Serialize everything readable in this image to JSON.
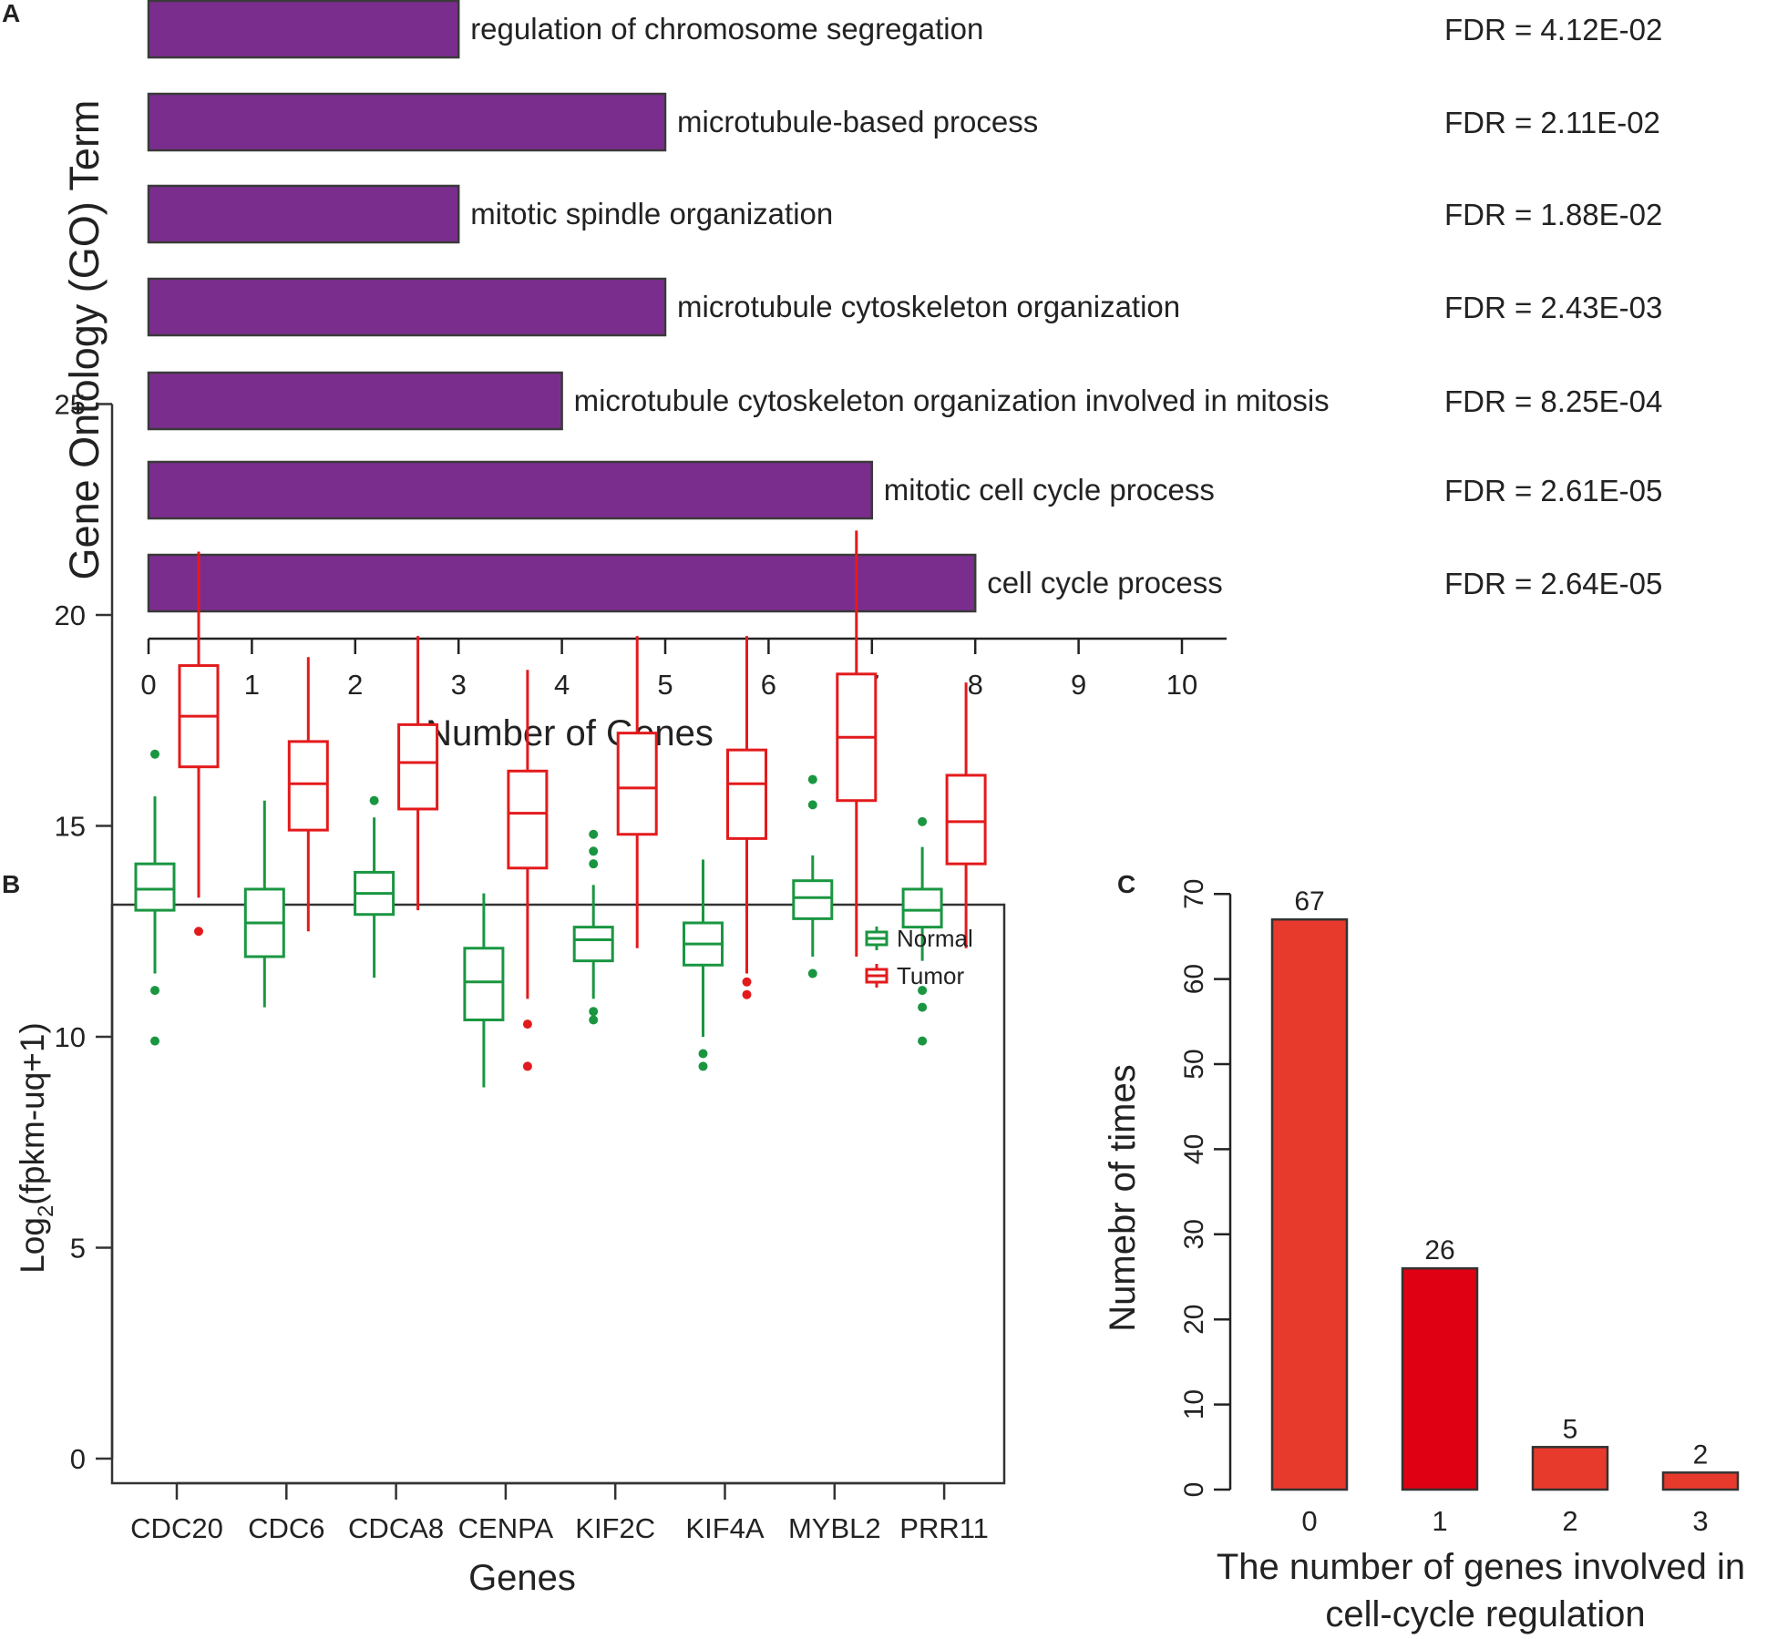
{
  "panels": {
    "a_letter": "A",
    "b_letter": "B",
    "c_letter": "C"
  },
  "chart_data": [
    {
      "panel": "A",
      "type": "bar",
      "orientation": "horizontal",
      "categories": [
        "regulation of chromosome segregation",
        "microtubule-based process",
        "mitotic spindle organization",
        "microtubule cytoskeleton organization",
        "microtubule cytoskeleton organization involved in mitosis",
        "mitotic cell cycle process",
        "cell cycle process"
      ],
      "values": [
        3,
        5,
        3,
        5,
        4,
        7,
        8
      ],
      "annotations": [
        "FDR = 4.12E-02",
        "FDR = 2.11E-02",
        "FDR = 1.88E-02",
        "FDR = 2.43E-03",
        "FDR = 8.25E-04",
        "FDR = 2.61E-05",
        "FDR = 2.64E-05"
      ],
      "xlabel": "Number of Genes",
      "ylabel": "Gene Ontology (GO) Term",
      "xlim": [
        0,
        10
      ],
      "xticks": [
        "0",
        "1",
        "2",
        "3",
        "4",
        "5",
        "6",
        "7",
        "8",
        "9",
        "10"
      ],
      "bar_color": "#7b2d8e",
      "grid": false
    },
    {
      "panel": "B",
      "type": "boxplot",
      "categories": [
        "CDC20",
        "CDC6",
        "CDCA8",
        "CENPA",
        "KIF2C",
        "KIF4A",
        "MYBL2",
        "PRR11"
      ],
      "ylabel_main": "Log",
      "ylabel_sub": "2",
      "ylabel_rest": "(fpkm-uq+1)",
      "xlabel": "Genes",
      "ylim": [
        -1.2,
        26
      ],
      "yticks": [
        "0",
        "5",
        "10",
        "15",
        "20",
        "25"
      ],
      "legend": {
        "position": "top-right",
        "entries": [
          "Normal",
          "Tumor"
        ]
      },
      "colors": {
        "Normal": "#1a9641",
        "Tumor": "#e31a1c"
      },
      "series": [
        {
          "name": "Normal",
          "boxes": [
            {
              "whisker_low": 11.5,
              "q1": 13.0,
              "median": 13.5,
              "q3": 14.1,
              "whisker_high": 15.7,
              "outliers": [
                16.7,
                11.1,
                9.9
              ]
            },
            {
              "whisker_low": 10.7,
              "q1": 11.9,
              "median": 12.7,
              "q3": 13.5,
              "whisker_high": 15.6,
              "outliers": []
            },
            {
              "whisker_low": 11.4,
              "q1": 12.9,
              "median": 13.4,
              "q3": 13.9,
              "whisker_high": 15.2,
              "outliers": [
                15.6
              ]
            },
            {
              "whisker_low": 8.8,
              "q1": 10.4,
              "median": 11.3,
              "q3": 12.1,
              "whisker_high": 13.4,
              "outliers": []
            },
            {
              "whisker_low": 10.9,
              "q1": 11.8,
              "median": 12.3,
              "q3": 12.6,
              "whisker_high": 13.6,
              "outliers": [
                14.1,
                14.4,
                14.8,
                10.6,
                10.4
              ]
            },
            {
              "whisker_low": 10.0,
              "q1": 11.7,
              "median": 12.2,
              "q3": 12.7,
              "whisker_high": 14.2,
              "outliers": [
                9.6,
                9.3
              ]
            },
            {
              "whisker_low": 11.9,
              "q1": 12.8,
              "median": 13.3,
              "q3": 13.7,
              "whisker_high": 14.3,
              "outliers": [
                15.5,
                16.1,
                11.5
              ]
            },
            {
              "whisker_low": 11.8,
              "q1": 12.6,
              "median": 13.0,
              "q3": 13.5,
              "whisker_high": 14.5,
              "outliers": [
                15.1,
                11.1,
                10.7,
                9.9
              ]
            }
          ]
        },
        {
          "name": "Tumor",
          "boxes": [
            {
              "whisker_low": 13.3,
              "q1": 16.4,
              "median": 17.6,
              "q3": 18.8,
              "whisker_high": 21.5,
              "outliers": [
                12.5
              ]
            },
            {
              "whisker_low": 12.5,
              "q1": 14.9,
              "median": 16.0,
              "q3": 17.0,
              "whisker_high": 19.0,
              "outliers": []
            },
            {
              "whisker_low": 13.0,
              "q1": 15.4,
              "median": 16.5,
              "q3": 17.4,
              "whisker_high": 19.5,
              "outliers": []
            },
            {
              "whisker_low": 10.9,
              "q1": 14.0,
              "median": 15.3,
              "q3": 16.3,
              "whisker_high": 18.7,
              "outliers": [
                10.3,
                9.3
              ]
            },
            {
              "whisker_low": 12.1,
              "q1": 14.8,
              "median": 15.9,
              "q3": 17.2,
              "whisker_high": 19.5,
              "outliers": []
            },
            {
              "whisker_low": 11.5,
              "q1": 14.7,
              "median": 16.0,
              "q3": 16.8,
              "whisker_high": 19.5,
              "outliers": [
                11.3,
                11.0
              ]
            },
            {
              "whisker_low": 11.9,
              "q1": 15.6,
              "median": 17.1,
              "q3": 18.6,
              "whisker_high": 22.0,
              "outliers": []
            },
            {
              "whisker_low": 12.1,
              "q1": 14.1,
              "median": 15.1,
              "q3": 16.2,
              "whisker_high": 18.4,
              "outliers": []
            }
          ]
        }
      ]
    },
    {
      "panel": "C",
      "type": "bar",
      "categories": [
        "0",
        "1",
        "2",
        "3"
      ],
      "values": [
        67,
        26,
        5,
        2
      ],
      "data_labels": [
        "67",
        "26",
        "5",
        "2"
      ],
      "colors": [
        "#e8392d",
        "#e00014",
        "#e8392d",
        "#e8392d"
      ],
      "ylabel": "Numebr of times",
      "xlabel_line1": "The number of genes involved in",
      "xlabel_line2": "cell-cycle regulation",
      "ylim": [
        0,
        70
      ],
      "yticks": [
        "0",
        "10",
        "20",
        "30",
        "40",
        "50",
        "60",
        "70"
      ],
      "grid": false
    }
  ]
}
